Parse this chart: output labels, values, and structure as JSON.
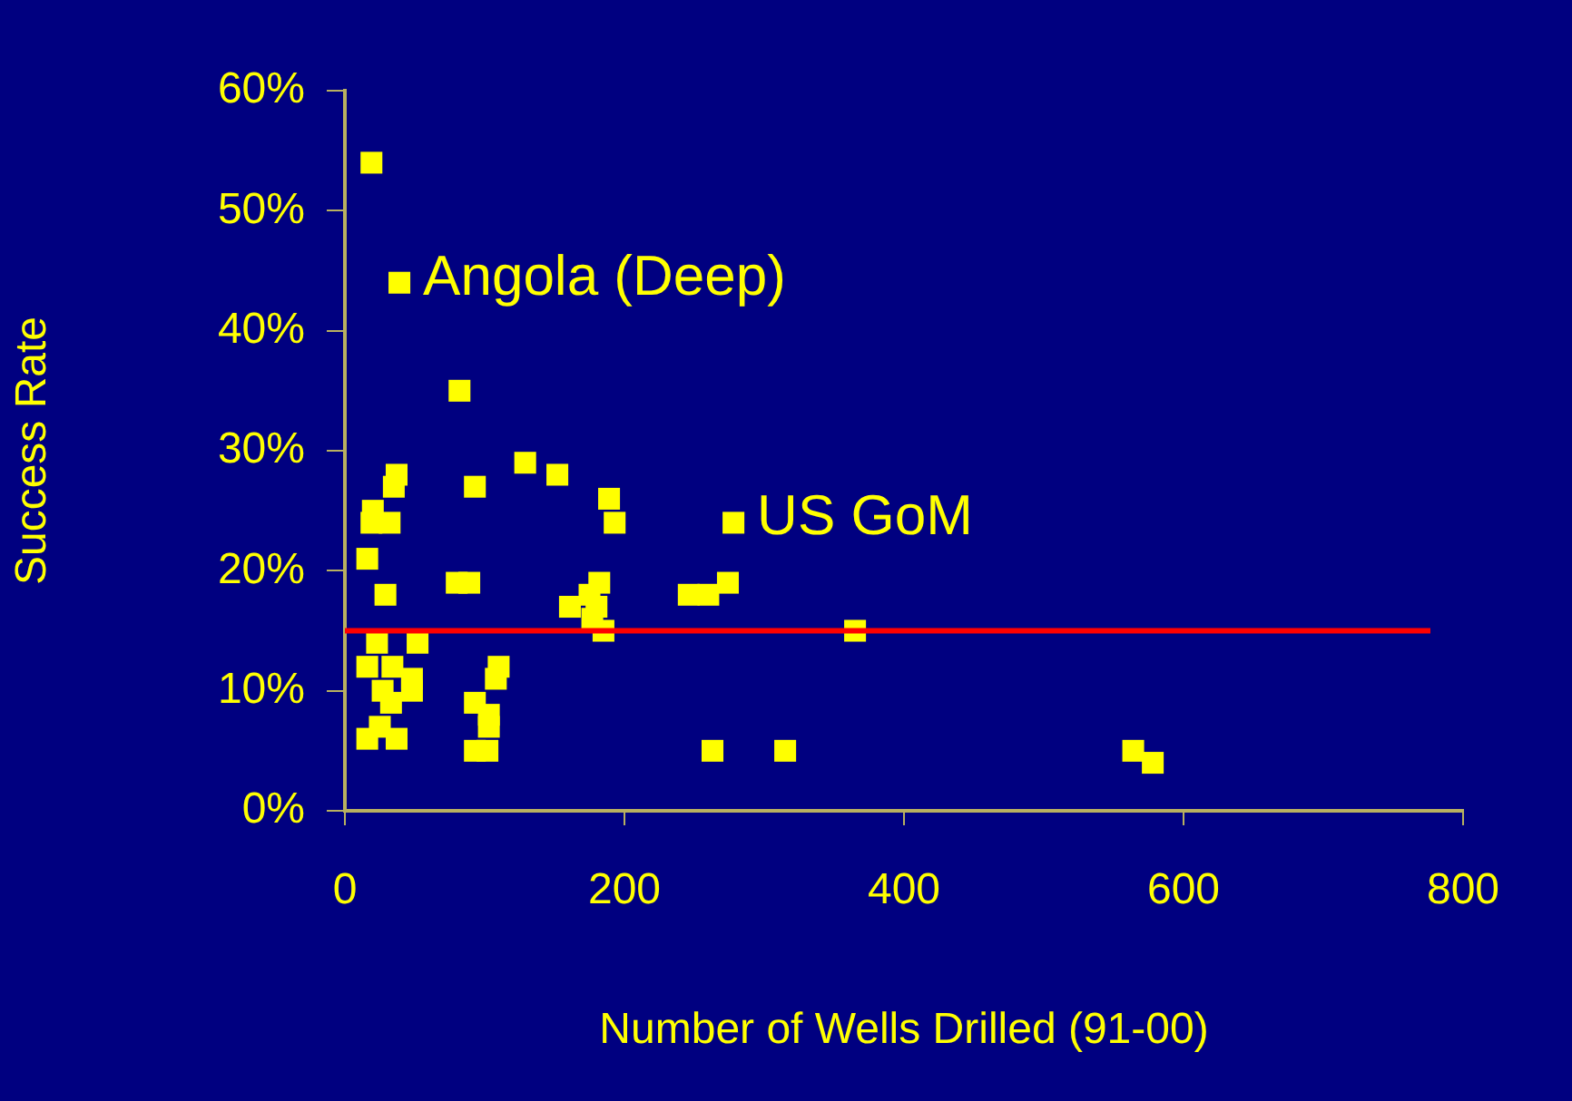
{
  "chart_data": {
    "type": "scatter",
    "xlabel": "Number of Wells Drilled (91-00)",
    "ylabel": "Success Rate",
    "series": [
      {
        "color": "#ffff00",
        "x": [
          19,
          39,
          82,
          37,
          35,
          93,
          129,
          152,
          189,
          193,
          20,
          32,
          19,
          16,
          29,
          80,
          89,
          161,
          182,
          175,
          180,
          185,
          177,
          278,
          246,
          260,
          274,
          365,
          263,
          315,
          110,
          108,
          93,
          103,
          103,
          93,
          102,
          23,
          52,
          16,
          34,
          48,
          27,
          48,
          33,
          25,
          16,
          37,
          564,
          578
        ],
        "values": [
          54,
          44,
          35,
          28,
          27,
          27,
          29,
          28,
          26,
          24,
          25,
          24,
          24,
          21,
          18,
          19,
          19,
          17,
          19,
          18,
          17,
          15,
          16,
          24,
          18,
          18,
          19,
          15,
          5,
          5,
          12,
          11,
          9,
          8,
          7,
          5,
          5,
          14,
          14,
          12,
          12,
          11,
          10,
          10,
          9,
          7,
          6,
          6,
          5,
          4
        ]
      }
    ],
    "marker": "square",
    "xlim": [
      0,
      800
    ],
    "xticks": [
      0,
      200,
      400,
      600,
      800
    ],
    "ylim": [
      0,
      60
    ],
    "yticks": [
      {
        "value": 0,
        "label": "0%"
      },
      {
        "value": 10,
        "label": "10%"
      },
      {
        "value": 20,
        "label": "20%"
      },
      {
        "value": 30,
        "label": "30%"
      },
      {
        "value": 40,
        "label": "40%"
      },
      {
        "value": 50,
        "label": "50%"
      },
      {
        "value": 60,
        "label": "60%"
      }
    ],
    "ref_lines": [
      {
        "axis": "y",
        "value": 15,
        "color": "#ff0000"
      }
    ],
    "annotations": [
      {
        "text": "Angola (Deep)",
        "x": 39,
        "y": 44
      },
      {
        "text": "US GoM",
        "x": 278,
        "y": 24
      }
    ],
    "grid": false,
    "legend": false
  }
}
